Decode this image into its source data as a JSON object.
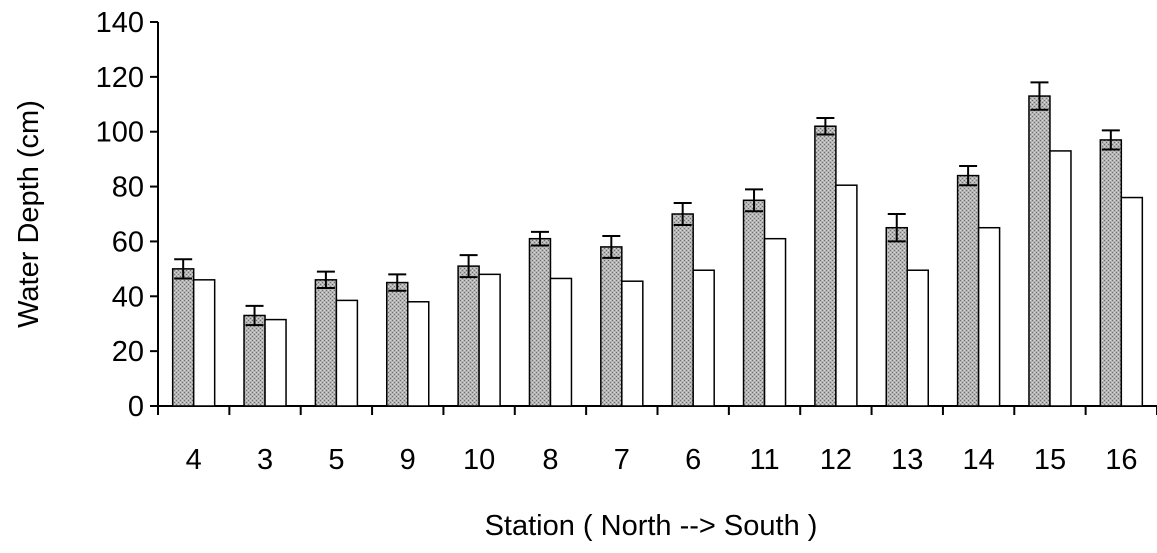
{
  "chart_data": {
    "type": "bar",
    "title": "",
    "xlabel": "Station ( North --> South )",
    "ylabel": "Water Depth (cm)",
    "ylim": [
      0,
      140
    ],
    "yticks": [
      0,
      20,
      40,
      60,
      80,
      100,
      120,
      140
    ],
    "grid": false,
    "legend": "none",
    "categories": [
      "4",
      "3",
      "5",
      "9",
      "10",
      "8",
      "7",
      "6",
      "11",
      "12",
      "13",
      "14",
      "15",
      "16"
    ],
    "series": [
      {
        "color": "#a8a8a8",
        "pattern": "stippled",
        "values": [
          50,
          33,
          46,
          45,
          51,
          61,
          58,
          70,
          75,
          102,
          65,
          84,
          113,
          97
        ],
        "error": [
          3.5,
          3.5,
          3.0,
          3.0,
          4.0,
          2.5,
          4.0,
          4.0,
          4.0,
          3.0,
          5.0,
          3.5,
          5.0,
          3.5
        ]
      },
      {
        "color": "#ffffff",
        "pattern": "solid",
        "values": [
          46,
          31.5,
          38.5,
          38,
          48,
          46.5,
          45.5,
          49.5,
          61,
          80.5,
          49.5,
          65,
          93,
          76
        ]
      }
    ]
  }
}
